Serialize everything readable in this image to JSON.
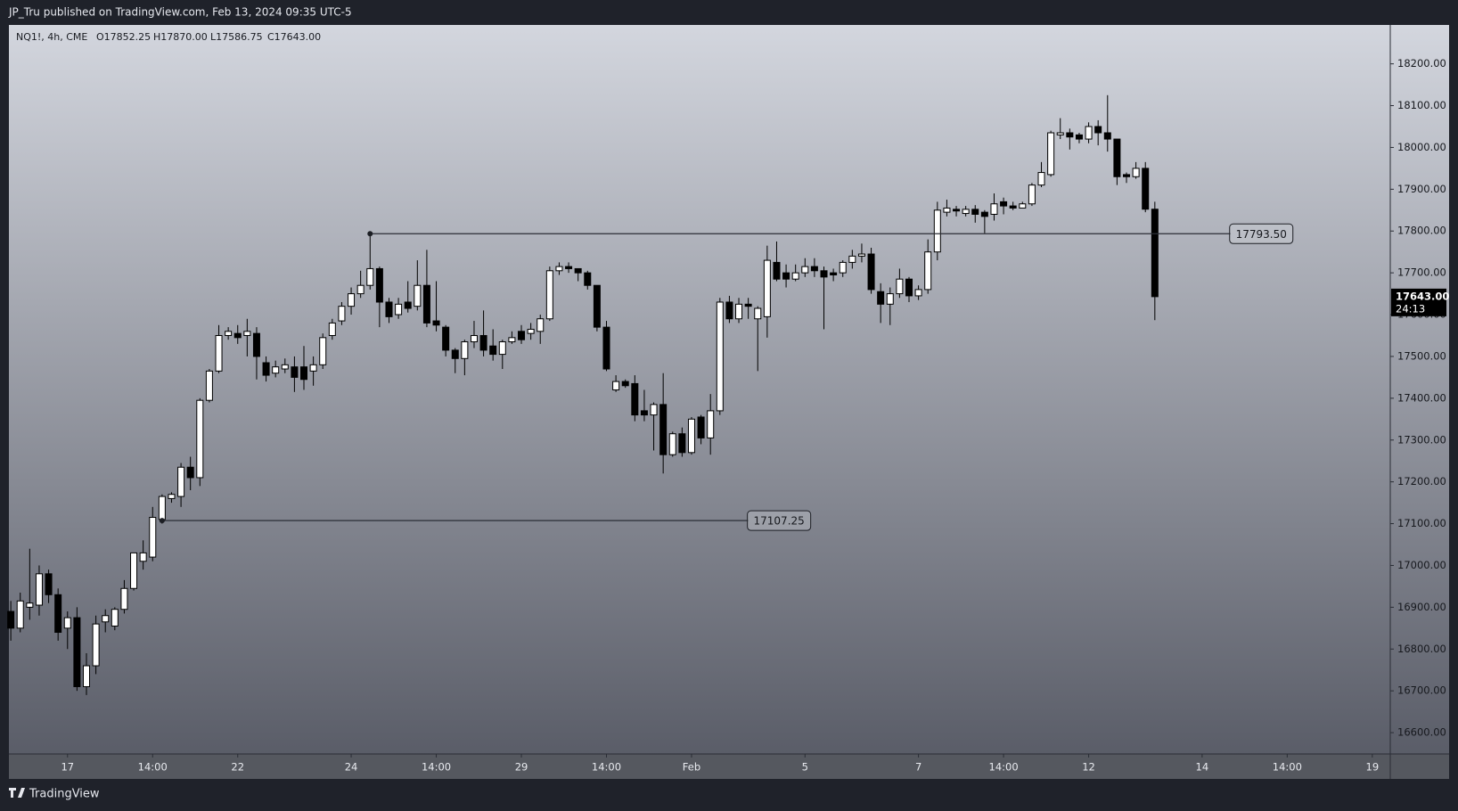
{
  "header": {
    "text": "JP_Tru published on TradingView.com, Feb 13, 2024 09:35 UTC-5"
  },
  "footer": {
    "brand": "TradingView"
  },
  "chart_data": {
    "type": "candlestick",
    "legend": {
      "symbol": "NQ1!, 4h, CME",
      "ohlc": [
        "O17852.25",
        "H17870.00",
        "L17586.75",
        "C17643.00"
      ]
    },
    "up_color": "#ffffff",
    "down_color": "#000000",
    "wick_color": "#000000",
    "open": [
      16890,
      16850,
      16900,
      16905,
      16980,
      16930,
      16850,
      16875,
      16710,
      16760,
      16865,
      16855,
      16895,
      16945,
      17010,
      17020,
      17110,
      17160,
      17165,
      17235,
      17210,
      17395,
      17465,
      17550,
      17555,
      17550,
      17555,
      17485,
      17460,
      17470,
      17475,
      17475,
      17465,
      17480,
      17550,
      17585,
      17620,
      17650,
      17670,
      17710,
      17630,
      17600,
      17630,
      17620,
      17670,
      17585,
      17570,
      17515,
      17495,
      17535,
      17550,
      17525,
      17505,
      17535,
      17560,
      17555,
      17560,
      17590,
      17705,
      17715,
      17710,
      17700,
      17670,
      17570,
      17420,
      17440,
      17435,
      17370,
      17360,
      17385,
      17265,
      17315,
      17270,
      17355,
      17305,
      17370,
      17630,
      17590,
      17625,
      17590,
      17595,
      17725,
      17700,
      17685,
      17700,
      17715,
      17705,
      17700,
      17700,
      17725,
      17740,
      17745,
      17655,
      17625,
      17650,
      17685,
      17645,
      17660,
      17750,
      17845,
      17852,
      17842,
      17852,
      17845,
      17840,
      17870,
      17860,
      17855,
      17865,
      17910,
      17935,
      18030,
      18035,
      18030,
      18020,
      18050,
      18035,
      18020,
      17935,
      17930,
      17950,
      17852.25
    ],
    "high": [
      16915,
      16935,
      17040,
      17000,
      16990,
      16945,
      16890,
      16900,
      16790,
      16880,
      16895,
      16900,
      16965,
      17030,
      17060,
      17140,
      17170,
      17175,
      17245,
      17260,
      17400,
      17470,
      17575,
      17570,
      17575,
      17590,
      17570,
      17500,
      17490,
      17495,
      17500,
      17525,
      17500,
      17555,
      17590,
      17630,
      17665,
      17705,
      17793.5,
      17715,
      17640,
      17640,
      17680,
      17730,
      17755,
      17680,
      17575,
      17520,
      17540,
      17585,
      17610,
      17565,
      17540,
      17560,
      17575,
      17580,
      17600,
      17715,
      17725,
      17725,
      17710,
      17705,
      17670,
      17585,
      17455,
      17445,
      17455,
      17420,
      17390,
      17460,
      17320,
      17330,
      17355,
      17360,
      17410,
      17640,
      17645,
      17640,
      17640,
      17620,
      17765,
      17775,
      17720,
      17720,
      17735,
      17735,
      17715,
      17710,
      17730,
      17755,
      17770,
      17760,
      17675,
      17665,
      17710,
      17690,
      17670,
      17780,
      17870,
      17875,
      17860,
      17860,
      17862,
      17850,
      17890,
      17880,
      17870,
      17870,
      17915,
      17965,
      18040,
      18070,
      18045,
      18035,
      18060,
      18065,
      18125,
      18020,
      17940,
      17965,
      17965,
      17870
    ],
    "low": [
      16820,
      16840,
      16870,
      16880,
      16910,
      16820,
      16800,
      16700,
      16690,
      16740,
      16840,
      16845,
      16885,
      16940,
      16990,
      17010,
      17100,
      17150,
      17140,
      17180,
      17190,
      17390,
      17460,
      17540,
      17530,
      17500,
      17445,
      17440,
      17450,
      17460,
      17415,
      17420,
      17430,
      17470,
      17540,
      17575,
      17600,
      17640,
      17660,
      17570,
      17580,
      17590,
      17605,
      17610,
      17570,
      17560,
      17500,
      17460,
      17455,
      17520,
      17500,
      17490,
      17470,
      17530,
      17530,
      17540,
      17530,
      17585,
      17695,
      17700,
      17680,
      17660,
      17560,
      17465,
      17415,
      17425,
      17345,
      17345,
      17275,
      17220,
      17260,
      17260,
      17265,
      17290,
      17265,
      17360,
      17580,
      17580,
      17590,
      17465,
      17545,
      17680,
      17665,
      17680,
      17690,
      17690,
      17565,
      17680,
      17690,
      17710,
      17725,
      17650,
      17580,
      17575,
      17640,
      17630,
      17635,
      17650,
      17730,
      17835,
      17835,
      17835,
      17820,
      17795,
      17825,
      17840,
      17850,
      17855,
      17860,
      17905,
      17930,
      18020,
      17995,
      18010,
      18010,
      18005,
      17990,
      17910,
      17915,
      17925,
      17845,
      17586.75
    ],
    "close": [
      16850,
      16915,
      16910,
      16980,
      16930,
      16840,
      16875,
      16710,
      16760,
      16860,
      16880,
      16895,
      16945,
      17030,
      17030,
      17115,
      17165,
      17170,
      17235,
      17210,
      17395,
      17465,
      17550,
      17560,
      17545,
      17560,
      17500,
      17455,
      17475,
      17480,
      17450,
      17445,
      17480,
      17545,
      17580,
      17620,
      17650,
      17670,
      17710,
      17630,
      17595,
      17625,
      17615,
      17670,
      17580,
      17575,
      17515,
      17495,
      17535,
      17550,
      17515,
      17505,
      17535,
      17545,
      17540,
      17565,
      17590,
      17705,
      17715,
      17710,
      17700,
      17670,
      17570,
      17470,
      17440,
      17430,
      17360,
      17360,
      17385,
      17265,
      17315,
      17270,
      17350,
      17305,
      17370,
      17630,
      17590,
      17625,
      17620,
      17615,
      17730,
      17685,
      17685,
      17700,
      17715,
      17705,
      17690,
      17695,
      17725,
      17740,
      17745,
      17660,
      17625,
      17650,
      17685,
      17645,
      17660,
      17750,
      17850,
      17855,
      17848,
      17852,
      17840,
      17835,
      17865,
      17860,
      17855,
      17865,
      17910,
      17940,
      18035,
      18035,
      18025,
      18020,
      18050,
      18035,
      18020,
      17930,
      17930,
      17950,
      17852.25,
      17643
    ],
    "xlim": [
      -0.2,
      145.9
    ],
    "xticks": [
      {
        "value": 6,
        "label": "17"
      },
      {
        "value": 15,
        "label": "14:00"
      },
      {
        "value": 24,
        "label": "22"
      },
      {
        "value": 36,
        "label": "24"
      },
      {
        "value": 45,
        "label": "14:00"
      },
      {
        "value": 54,
        "label": "29"
      },
      {
        "value": 63,
        "label": "14:00"
      },
      {
        "value": 72,
        "label": "Feb"
      },
      {
        "value": 84,
        "label": "5"
      },
      {
        "value": 96,
        "label": "7"
      },
      {
        "value": 105,
        "label": "14:00"
      },
      {
        "value": 114,
        "label": "12"
      },
      {
        "value": 126,
        "label": "14"
      },
      {
        "value": 135,
        "label": "14:00"
      },
      {
        "value": 144,
        "label": "19"
      }
    ],
    "ylim": [
      16549,
      18293
    ],
    "yticks": [
      {
        "value": 16600,
        "label": "16600.00"
      },
      {
        "value": 16700,
        "label": "16700.00"
      },
      {
        "value": 16800,
        "label": "16800.00"
      },
      {
        "value": 16900,
        "label": "16900.00"
      },
      {
        "value": 17000,
        "label": "17000.00"
      },
      {
        "value": 17100,
        "label": "17100.00"
      },
      {
        "value": 17200,
        "label": "17200.00"
      },
      {
        "value": 17300,
        "label": "17300.00"
      },
      {
        "value": 17400,
        "label": "17400.00"
      },
      {
        "value": 17500,
        "label": "17500.00"
      },
      {
        "value": 17600,
        "label": "17600.00"
      },
      {
        "value": 17700,
        "label": "17700.00"
      },
      {
        "value": 17800,
        "label": "17800.00"
      },
      {
        "value": 17900,
        "label": "17900.00"
      },
      {
        "value": 18000,
        "label": "18000.00"
      },
      {
        "value": 18100,
        "label": "18100.00"
      },
      {
        "value": 18200,
        "label": "18200.00"
      }
    ],
    "grid": false,
    "annotations": [
      {
        "value": 17793.5,
        "label": "17793.50",
        "from": 38,
        "to": 135.6
      },
      {
        "value": 17107.25,
        "label": "17107.25",
        "from": 16,
        "to": 84.6
      }
    ],
    "last_price": {
      "value": 17643,
      "label": "17643.00",
      "countdown": "24:13"
    }
  }
}
